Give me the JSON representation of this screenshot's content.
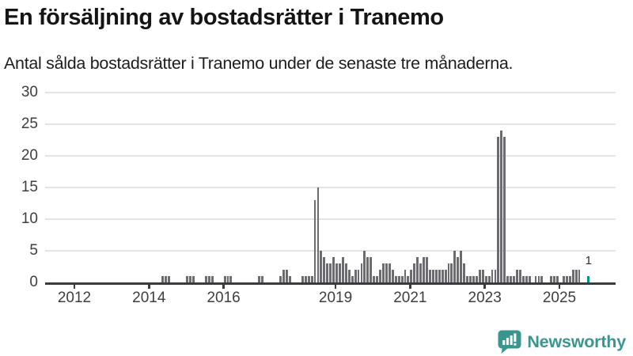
{
  "branding": {
    "wordmark": "Newsworthy",
    "brand_color": "#3a968d"
  },
  "chart_data": {
    "type": "bar",
    "title": "En försäljning av bostadsrätter i Tranemo",
    "subtitle": "Antal sålda bostadsrätter i Tranemo under de senaste tre månaderna.",
    "frequency": "monthly",
    "first_period": "2011-04",
    "last_period": "2025-10",
    "ylim": [
      0,
      30
    ],
    "y_ticks": [
      0,
      5,
      10,
      15,
      20,
      25,
      30
    ],
    "x_tick_labels": [
      "2012",
      "2014",
      "2016",
      "2019",
      "2021",
      "2023",
      "2025"
    ],
    "grid": "horizontal",
    "legend": "none",
    "bar_color": "#6c6c70",
    "highlight_color": "#009690",
    "axis_color": "#3b3b3f",
    "highlight": {
      "period": "2025-10",
      "value": 1,
      "label": "1"
    },
    "series_by_year": {
      "2011": [
        0,
        0,
        0,
        0,
        0,
        0,
        0,
        0,
        0
      ],
      "2012": [
        0,
        0,
        0,
        0,
        0,
        0,
        0,
        0,
        0,
        0,
        0,
        0
      ],
      "2013": [
        0,
        0,
        0,
        0,
        0,
        0,
        0,
        0,
        0,
        0,
        0,
        0
      ],
      "2014": [
        0,
        0,
        0,
        0,
        1,
        1,
        1,
        0,
        0,
        0,
        0,
        0
      ],
      "2015": [
        1,
        1,
        1,
        0,
        0,
        0,
        1,
        1,
        1,
        0,
        0,
        0
      ],
      "2016": [
        1,
        1,
        1,
        0,
        0,
        0,
        0,
        0,
        0,
        0,
        0,
        1
      ],
      "2017": [
        1,
        0,
        0,
        0,
        0,
        0,
        1,
        2,
        2,
        1,
        0,
        0
      ],
      "2018": [
        0,
        1,
        1,
        1,
        1,
        13,
        15,
        5,
        4,
        3,
        3,
        4
      ],
      "2019": [
        3,
        3,
        4,
        3,
        2,
        1,
        2,
        2,
        3,
        5,
        4,
        4
      ],
      "2020": [
        1,
        1,
        2,
        3,
        3,
        3,
        2,
        1,
        1,
        1,
        2,
        1
      ],
      "2021": [
        2,
        3,
        4,
        3,
        4,
        4,
        2,
        2,
        2,
        2,
        2,
        2
      ],
      "2022": [
        3,
        3,
        5,
        4,
        5,
        3,
        1,
        1,
        1,
        1,
        2,
        2
      ],
      "2023": [
        1,
        1,
        2,
        2,
        23,
        24,
        23,
        1,
        1,
        1,
        2,
        2
      ],
      "2024": [
        1,
        1,
        1,
        0,
        1,
        1,
        1,
        0,
        0,
        1,
        1,
        1
      ],
      "2025": [
        0,
        1,
        1,
        1,
        2,
        2,
        2,
        0,
        0,
        1
      ]
    }
  }
}
